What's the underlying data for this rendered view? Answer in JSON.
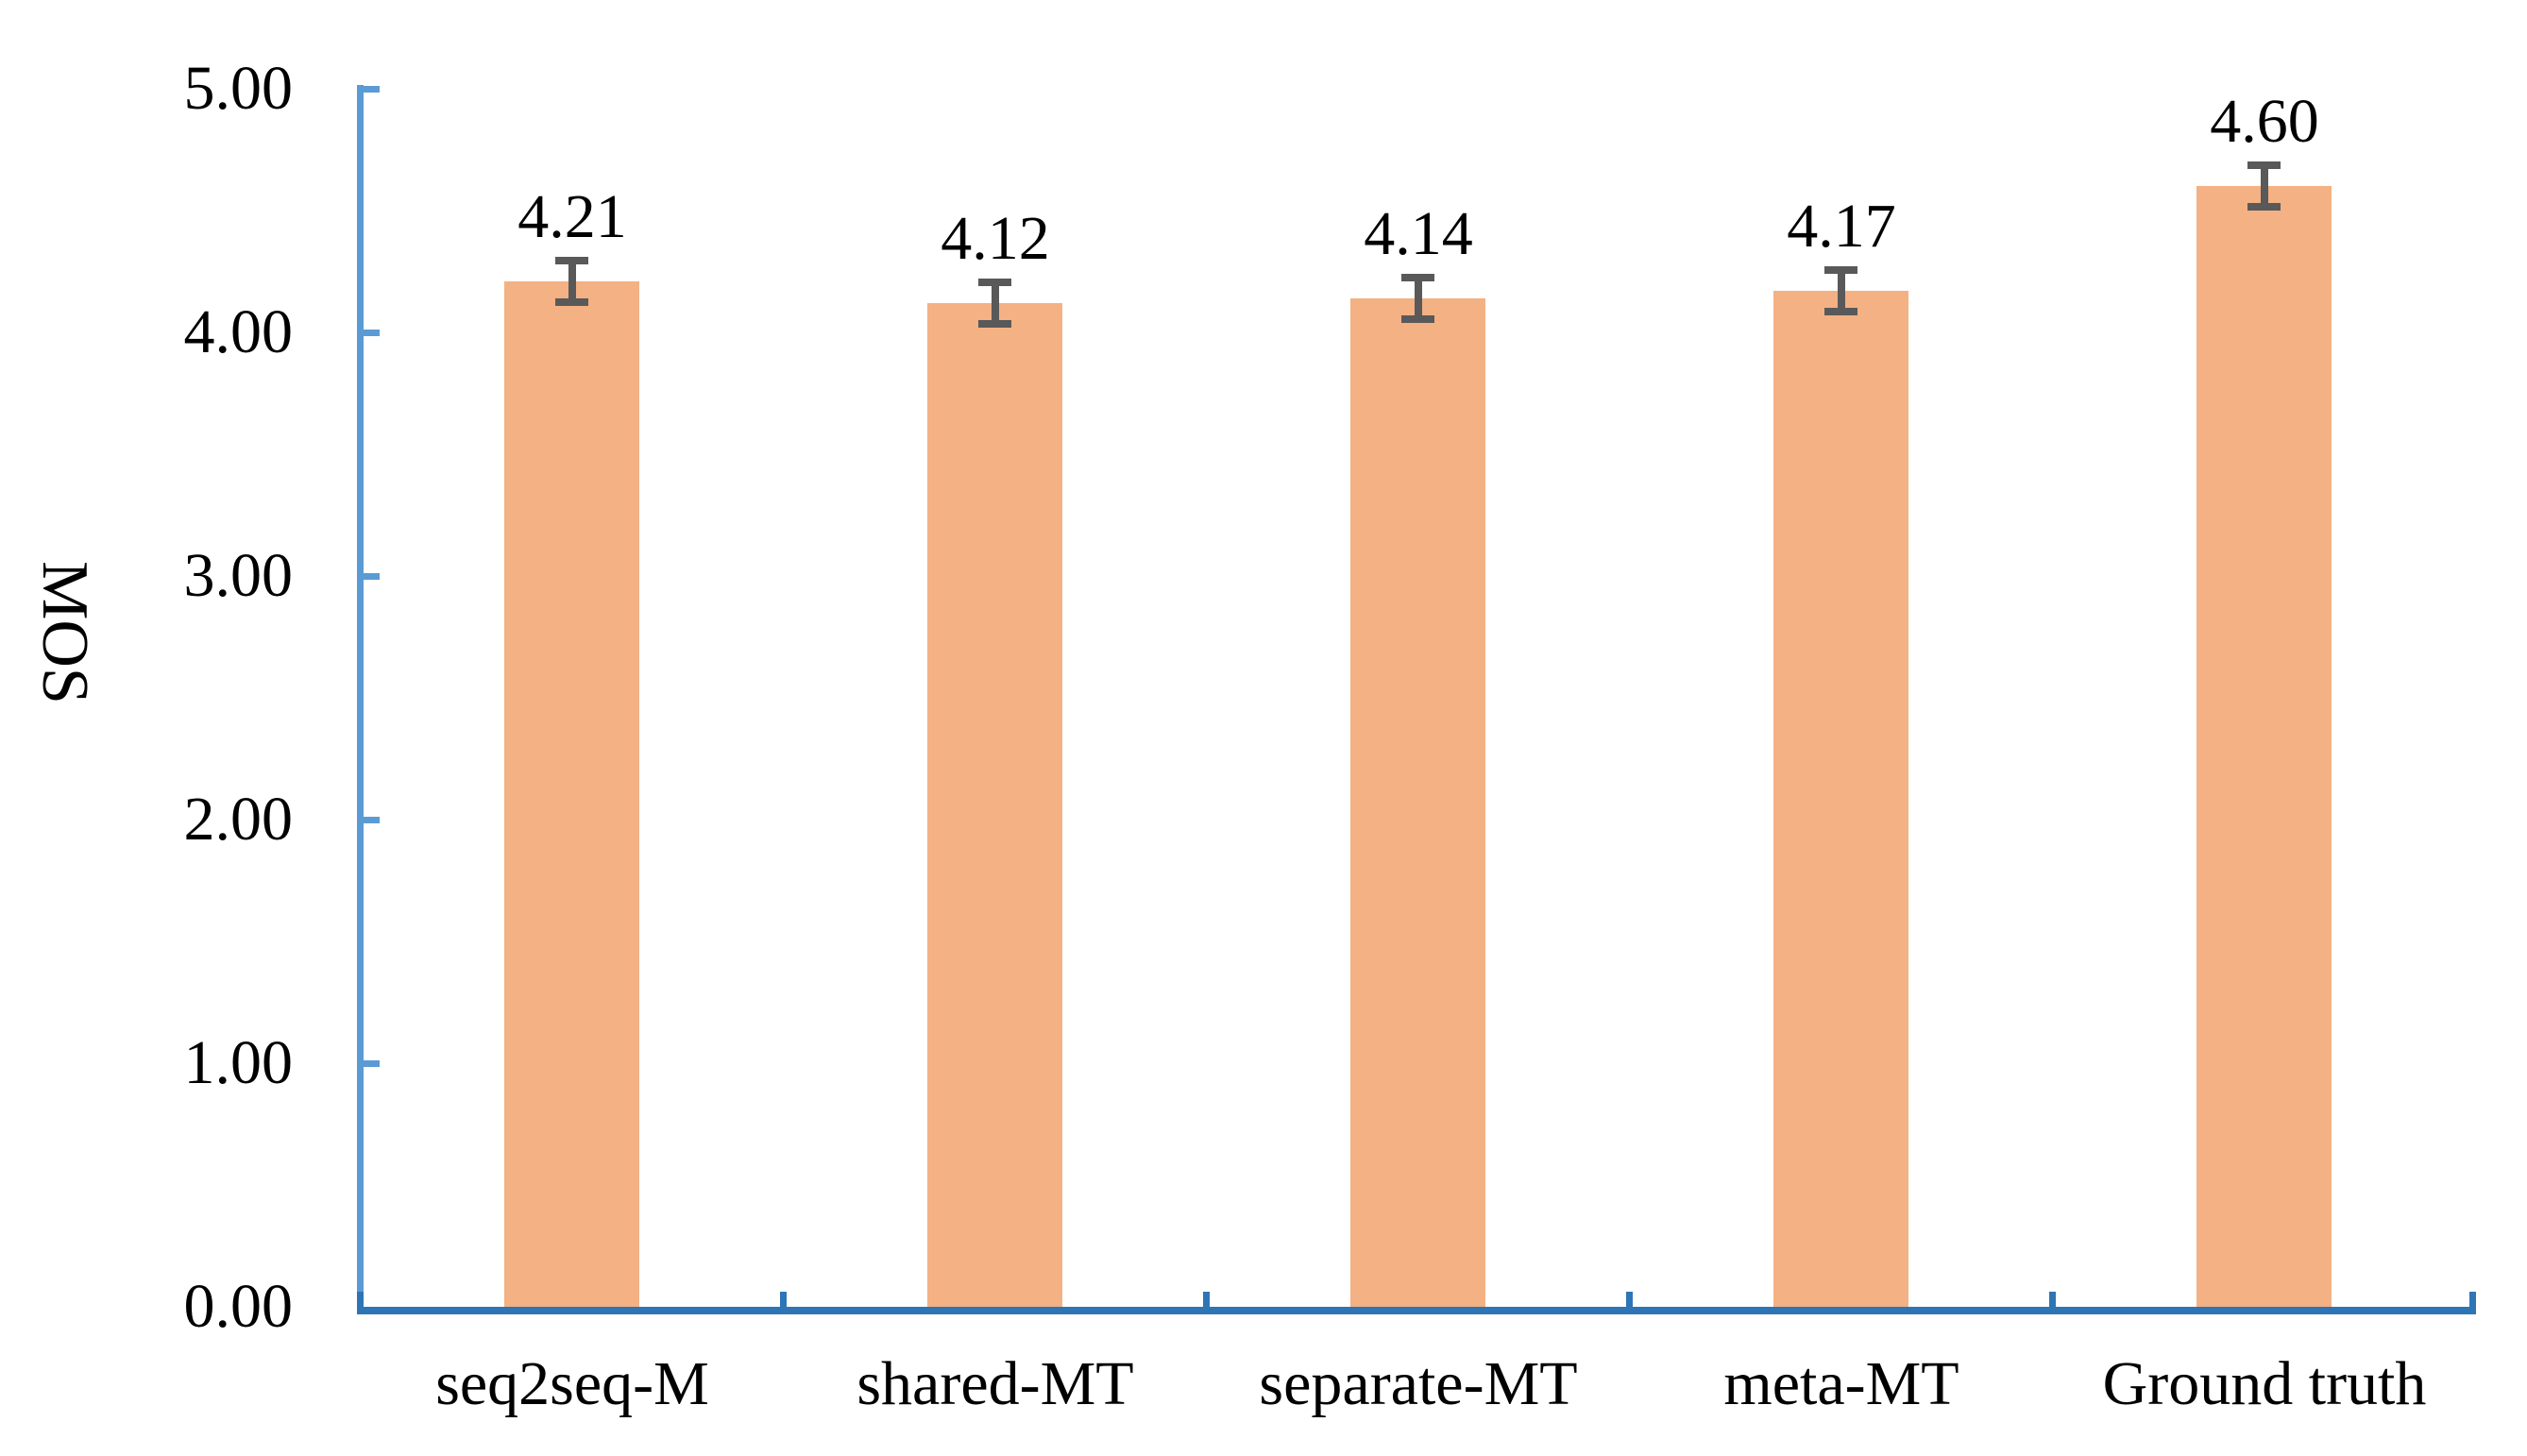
{
  "chart_data": {
    "type": "bar",
    "title": "",
    "categories": [
      "seq2seq-M",
      "shared-MT",
      "separate-MT",
      "meta-MT",
      "Ground truth"
    ],
    "values": [
      4.21,
      4.12,
      4.14,
      4.17,
      4.6
    ],
    "value_labels": [
      "4.21",
      "4.12",
      "4.14",
      "4.17",
      "4.60"
    ],
    "errors": [
      0.1,
      0.1,
      0.1,
      0.1,
      0.1
    ],
    "xlabel": "",
    "ylabel": "MOS",
    "ylim": [
      0,
      5
    ],
    "yticks": [
      0,
      1,
      2,
      3,
      4,
      5
    ],
    "ytick_labels": [
      "0.00",
      "1.00",
      "2.00",
      "3.00",
      "4.00",
      "5.00"
    ],
    "grid": false,
    "legend": "none",
    "colors": {
      "bar": "#F4B183",
      "error_bar": "#595959",
      "y_axis": "#5B9BD5",
      "x_axis": "#2E75B6",
      "text": "#000000"
    }
  }
}
